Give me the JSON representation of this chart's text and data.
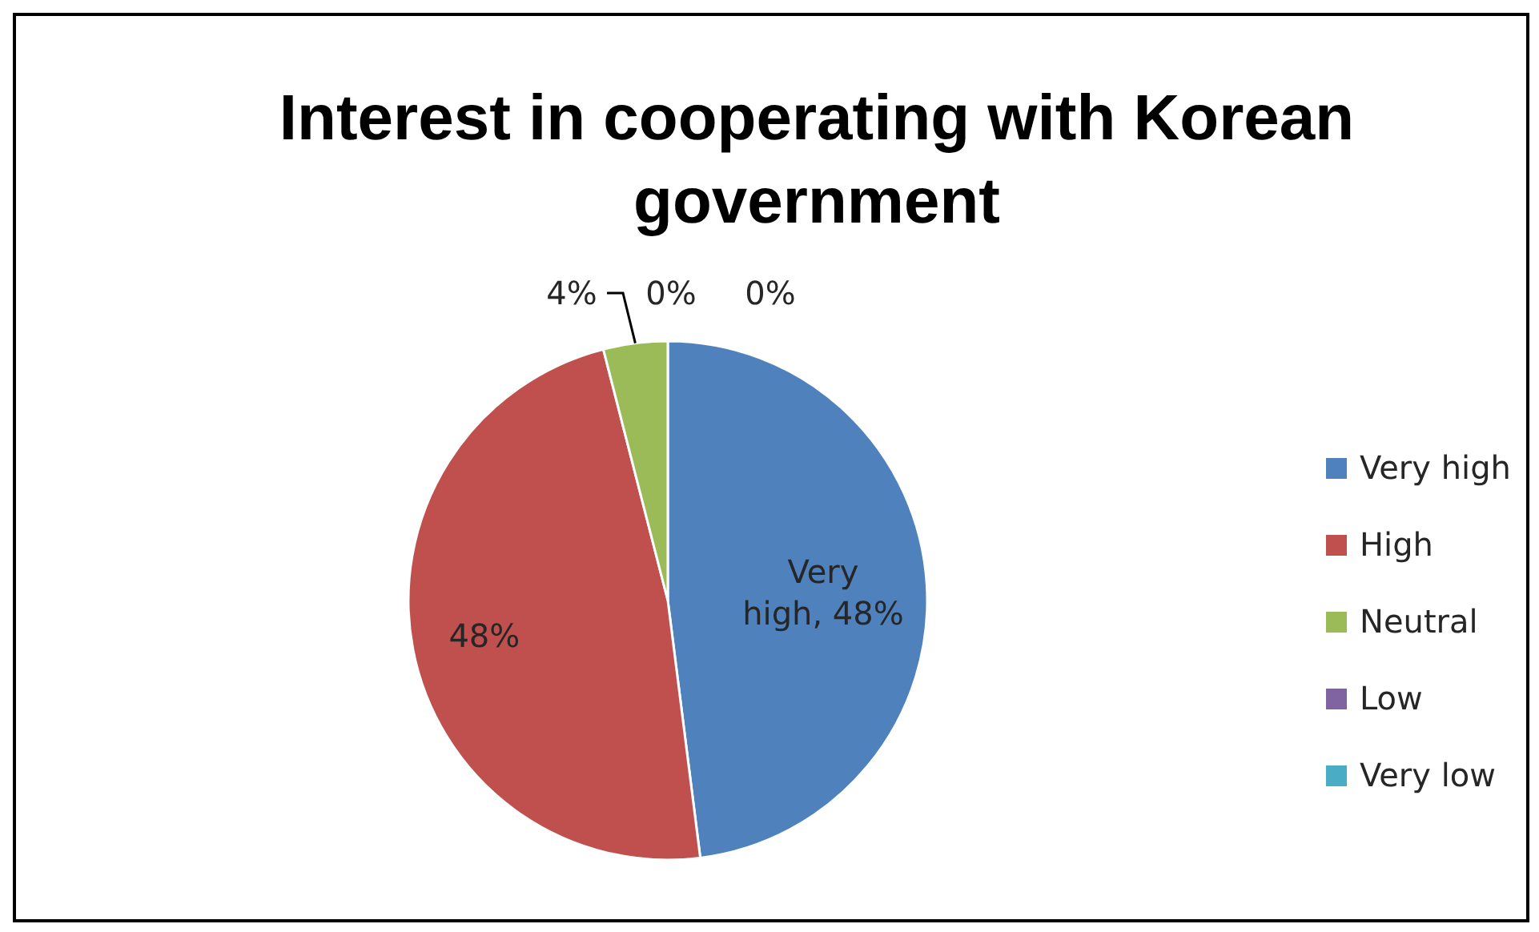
{
  "chart_data": {
    "type": "pie",
    "title": "Interest in cooperating with Korean government",
    "categories": [
      "Very high",
      "High",
      "Neutral",
      "Low",
      "Very low"
    ],
    "values": [
      48,
      48,
      4,
      0,
      0
    ],
    "colors": [
      "#4f81bd",
      "#c0504d",
      "#9bbb59",
      "#8064a2",
      "#4bacc6"
    ],
    "value_labels": [
      "Very high, 48%",
      "48%",
      "4%",
      "0%",
      "0%"
    ],
    "legend": "right"
  }
}
